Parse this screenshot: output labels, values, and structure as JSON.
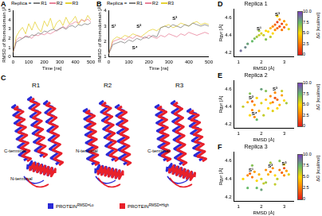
{
  "chart_data": [
    {
      "panel_label": "A",
      "type": "line",
      "x_label": "Time [ns]",
      "y_label": "RMSD of Bromodomain [Å]",
      "xlim": [
        0,
        500
      ],
      "xticks": [
        0,
        100,
        200,
        300,
        400,
        500
      ],
      "ylim": [
        0,
        5
      ],
      "yticks": [
        0,
        1,
        2,
        3,
        4,
        5
      ],
      "grid": false,
      "legend": "top",
      "legend_title": "Replica =",
      "x": [
        0,
        20,
        40,
        60,
        80,
        100,
        120,
        140,
        160,
        180,
        200,
        220,
        240,
        260,
        280,
        300,
        320,
        340,
        360,
        380,
        400,
        420,
        440,
        460,
        480,
        500
      ],
      "series": [
        {
          "name": "R1",
          "color": "#7f7f7f",
          "values": [
            0.5,
            1.6,
            1.8,
            2.0,
            2.2,
            2.1,
            2.4,
            2.3,
            2.6,
            2.5,
            2.8,
            2.7,
            2.9,
            3.0,
            2.8,
            3.1,
            3.2,
            3.0,
            3.3,
            3.4,
            3.2,
            3.5,
            3.4,
            3.6,
            3.5,
            3.7
          ]
        },
        {
          "name": "R2",
          "color": "#e8839a",
          "values": [
            0.5,
            1.8,
            2.1,
            2.0,
            2.3,
            2.2,
            2.0,
            2.4,
            2.3,
            2.5,
            2.4,
            2.6,
            2.5,
            2.7,
            2.9,
            3.0,
            3.3,
            3.1,
            3.5,
            3.6,
            3.8,
            3.7,
            4.0,
            3.9,
            4.1,
            3.8
          ]
        },
        {
          "name": "R3",
          "color": "#e6d235",
          "values": [
            0.5,
            2.2,
            2.8,
            3.2,
            2.5,
            3.6,
            2.9,
            3.8,
            3.1,
            2.7,
            3.9,
            3.3,
            4.2,
            3.0,
            3.7,
            4.0,
            3.4,
            4.3,
            3.6,
            3.9,
            4.4,
            3.5,
            4.1,
            3.8,
            4.5,
            4.0
          ]
        }
      ]
    },
    {
      "panel_label": "B",
      "type": "line",
      "x_label": "Time [ns]",
      "y_label": "RMSD of Bromodomain [Å]",
      "xlim": [
        0,
        500
      ],
      "xticks": [
        0,
        100,
        200,
        300,
        400,
        500
      ],
      "ylim": [
        1,
        4
      ],
      "yticks": [
        1,
        2,
        3,
        4
      ],
      "grid": false,
      "legend": "top",
      "legend_title": "Replica =",
      "x": [
        0,
        20,
        40,
        60,
        80,
        100,
        120,
        140,
        160,
        180,
        200,
        220,
        240,
        260,
        280,
        300,
        320,
        340,
        360,
        380,
        400,
        420,
        440,
        460,
        480,
        500
      ],
      "series": [
        {
          "name": "R1",
          "color": "#7f7f7f",
          "values": [
            1.2,
            1.8,
            1.9,
            2.0,
            1.9,
            2.1,
            2.0,
            2.2,
            2.1,
            2.3,
            2.2,
            2.4,
            2.3,
            2.9,
            3.0,
            2.9,
            3.1,
            3.0,
            2.9,
            3.1,
            3.0,
            3.2,
            3.1,
            3.0,
            3.1,
            3.0
          ]
        },
        {
          "name": "R2",
          "color": "#e8839a",
          "values": [
            1.2,
            2.0,
            2.1,
            2.2,
            2.1,
            2.3,
            2.2,
            2.4,
            2.3,
            2.2,
            2.4,
            2.3,
            2.2,
            2.4,
            2.3,
            2.5,
            2.4,
            2.3,
            2.5,
            2.4,
            2.6,
            2.5,
            2.4,
            2.5,
            2.6,
            2.5
          ]
        },
        {
          "name": "R3",
          "color": "#e6d235",
          "values": [
            1.2,
            2.1,
            2.3,
            2.2,
            2.4,
            2.3,
            2.5,
            2.4,
            2.3,
            2.5,
            2.7,
            2.8,
            2.7,
            2.9,
            3.0,
            3.1,
            2.9,
            3.0,
            3.2,
            3.1,
            3.0,
            3.2,
            3.3,
            3.1,
            3.2,
            3.1
          ]
        }
      ],
      "annotations": [
        {
          "text": "S¹",
          "x": 25,
          "y": 3.0
        },
        {
          "text": "S²",
          "x": 150,
          "y": 3.0
        },
        {
          "text": "S⁴",
          "x": 130,
          "y": 1.6
        },
        {
          "text": "S³",
          "x": 330,
          "y": 3.5
        }
      ]
    },
    {
      "panel_label": "D",
      "type": "scatter",
      "title": "Replica 1",
      "x_label": "RMSD [Å]",
      "y_label": "Rgyr [Å]",
      "xlim": [
        0.8,
        3.4
      ],
      "xticks": [
        1,
        2,
        3
      ],
      "ylim": [
        4.15,
        4.7
      ],
      "yticks": [
        4.2,
        4.4,
        4.6
      ],
      "grid": false,
      "x": [
        1.1,
        1.3,
        1.4,
        1.6,
        1.7,
        1.8,
        1.9,
        2.0,
        2.1,
        2.2,
        2.3,
        2.4,
        2.5,
        2.5,
        2.6,
        2.6,
        2.7,
        2.7,
        2.8,
        2.8,
        2.9,
        2.9,
        3.0,
        3.0,
        3.1,
        2.2,
        1.9,
        2.4,
        2.7,
        3.2
      ],
      "y": [
        4.22,
        4.26,
        4.3,
        4.33,
        4.36,
        4.38,
        4.4,
        4.42,
        4.4,
        4.45,
        4.44,
        4.48,
        4.5,
        4.42,
        4.52,
        4.46,
        4.55,
        4.48,
        4.5,
        4.58,
        4.53,
        4.46,
        4.49,
        4.56,
        4.52,
        4.35,
        4.45,
        4.38,
        4.62,
        4.47
      ],
      "dG": [
        9,
        8.5,
        8,
        7.5,
        7,
        6.5,
        6,
        5.5,
        6,
        5,
        5,
        4,
        3,
        5,
        2,
        3,
        1,
        2,
        1.5,
        3,
        1,
        2.5,
        2,
        3.5,
        4,
        7,
        6.5,
        6,
        5,
        5.5
      ],
      "colorbar": {
        "label": "ΔG [kcal/mol]",
        "range": [
          0,
          10
        ],
        "ticks": [
          0,
          2.5,
          {
            "value": 5,
            "label": "5.0"
          },
          7.5,
          {
            "value": 10,
            "label": "10.0"
          }
        ]
      },
      "annotations": [
        {
          "text": "S¹",
          "x": 1.9,
          "y": 4.47
        },
        {
          "text": "S³",
          "x": 2.7,
          "y": 4.64
        }
      ]
    },
    {
      "panel_label": "E",
      "type": "scatter",
      "title": "Replica 2",
      "x_label": "RMSD [Å]",
      "y_label": "Rgyr [Å]",
      "xlim": [
        0.8,
        3.4
      ],
      "xticks": [
        1,
        2,
        3
      ],
      "ylim": [
        4.15,
        4.7
      ],
      "yticks": [
        4.2,
        4.4,
        4.6
      ],
      "grid": false,
      "x": [
        1.2,
        1.4,
        1.5,
        1.6,
        1.7,
        1.7,
        1.8,
        1.9,
        2.0,
        2.1,
        2.2,
        2.3,
        2.4,
        2.5,
        2.6,
        2.6,
        2.7,
        2.8,
        2.9,
        3.0,
        1.5,
        1.8,
        2.2,
        2.5,
        3.1,
        2.0,
        2.7,
        1.6,
        2.4,
        2.9
      ],
      "y": [
        4.4,
        4.45,
        4.3,
        4.46,
        4.28,
        4.42,
        4.5,
        4.35,
        4.44,
        4.3,
        4.48,
        4.38,
        4.52,
        4.45,
        4.5,
        4.56,
        4.48,
        4.42,
        4.53,
        4.47,
        4.55,
        4.25,
        4.58,
        4.35,
        4.44,
        4.6,
        4.38,
        4.36,
        4.44,
        4.58
      ],
      "dG": [
        6,
        4,
        5,
        2,
        3,
        3.5,
        5,
        4,
        5.5,
        6,
        4.5,
        5,
        3,
        2.5,
        1.5,
        3,
        2,
        4,
        3.5,
        5,
        7,
        7.5,
        7,
        5.5,
        6.5,
        8,
        5,
        3,
        4.5,
        6
      ],
      "colorbar": {
        "label": "ΔG [kcal/mol]",
        "range": [
          0,
          10
        ],
        "ticks": [
          0,
          2.5,
          {
            "value": 5,
            "label": "5.0"
          },
          7.5,
          {
            "value": 10,
            "label": "10.0"
          }
        ]
      },
      "annotations": [
        {
          "text": "S²",
          "x": 1.55,
          "y": 4.5
        },
        {
          "text": "S⁴",
          "x": 1.7,
          "y": 4.32
        },
        {
          "text": "S³",
          "x": 2.6,
          "y": 4.6
        }
      ]
    },
    {
      "panel_label": "F",
      "type": "scatter",
      "title": "Replica 3",
      "x_label": "RMSD [Å]",
      "y_label": "Rgyr [Å]",
      "xlim": [
        0.8,
        3.4
      ],
      "xticks": [
        1,
        2,
        3
      ],
      "ylim": [
        4.15,
        4.7
      ],
      "yticks": [
        4.2,
        4.4,
        4.6
      ],
      "grid": false,
      "x": [
        1.2,
        1.4,
        1.5,
        1.6,
        1.7,
        1.8,
        1.9,
        2.0,
        2.1,
        2.2,
        2.3,
        2.4,
        2.5,
        2.6,
        2.7,
        2.8,
        2.9,
        3.0,
        3.0,
        3.1,
        1.6,
        2.0,
        2.4,
        2.8,
        3.2,
        1.8,
        2.2,
        2.6,
        3.0,
        1.4
      ],
      "y": [
        4.4,
        4.44,
        4.46,
        4.42,
        4.48,
        4.38,
        4.45,
        4.4,
        4.35,
        4.5,
        4.45,
        4.48,
        4.52,
        4.44,
        4.4,
        4.5,
        4.47,
        4.52,
        4.44,
        4.49,
        4.55,
        4.28,
        4.58,
        4.6,
        4.45,
        4.3,
        4.36,
        4.34,
        4.56,
        4.3
      ],
      "dG": [
        5,
        3,
        2,
        2.5,
        3.5,
        5,
        4,
        5.5,
        6,
        3,
        4,
        2.5,
        3,
        5,
        6,
        2.5,
        2,
        1.5,
        3,
        3.5,
        7,
        8,
        6.5,
        7,
        5.5,
        7.5,
        6.5,
        6,
        5,
        7.5
      ],
      "colorbar": {
        "label": "ΔG [kcal/mol]",
        "range": [
          0,
          10
        ],
        "ticks": [
          0,
          2.5,
          {
            "value": 5,
            "label": "5.0"
          },
          7.5,
          {
            "value": 10,
            "label": "10.0"
          }
        ]
      },
      "annotations": [
        {
          "text": "S¹",
          "x": 1.55,
          "y": 4.5
        },
        {
          "text": "S²",
          "x": 2.4,
          "y": 4.54
        },
        {
          "text": "S³",
          "x": 3.0,
          "y": 4.57
        }
      ]
    }
  ],
  "structure_panel": {
    "panel_label": "C",
    "structures": [
      {
        "title": "R1",
        "labels": [
          "C-terminal",
          "N-terminal"
        ]
      },
      {
        "title": "R2",
        "labels": [
          "N-terminal"
        ]
      },
      {
        "title": "R3",
        "labels": [
          "C-terminal"
        ]
      }
    ],
    "legend": [
      {
        "text": "PROTEIN",
        "superscript": "RMSD=Lo",
        "color": "#2b2bd6"
      },
      {
        "text": "PROTEIN",
        "superscript": "RMSD=High",
        "color": "#e8202a"
      }
    ]
  }
}
